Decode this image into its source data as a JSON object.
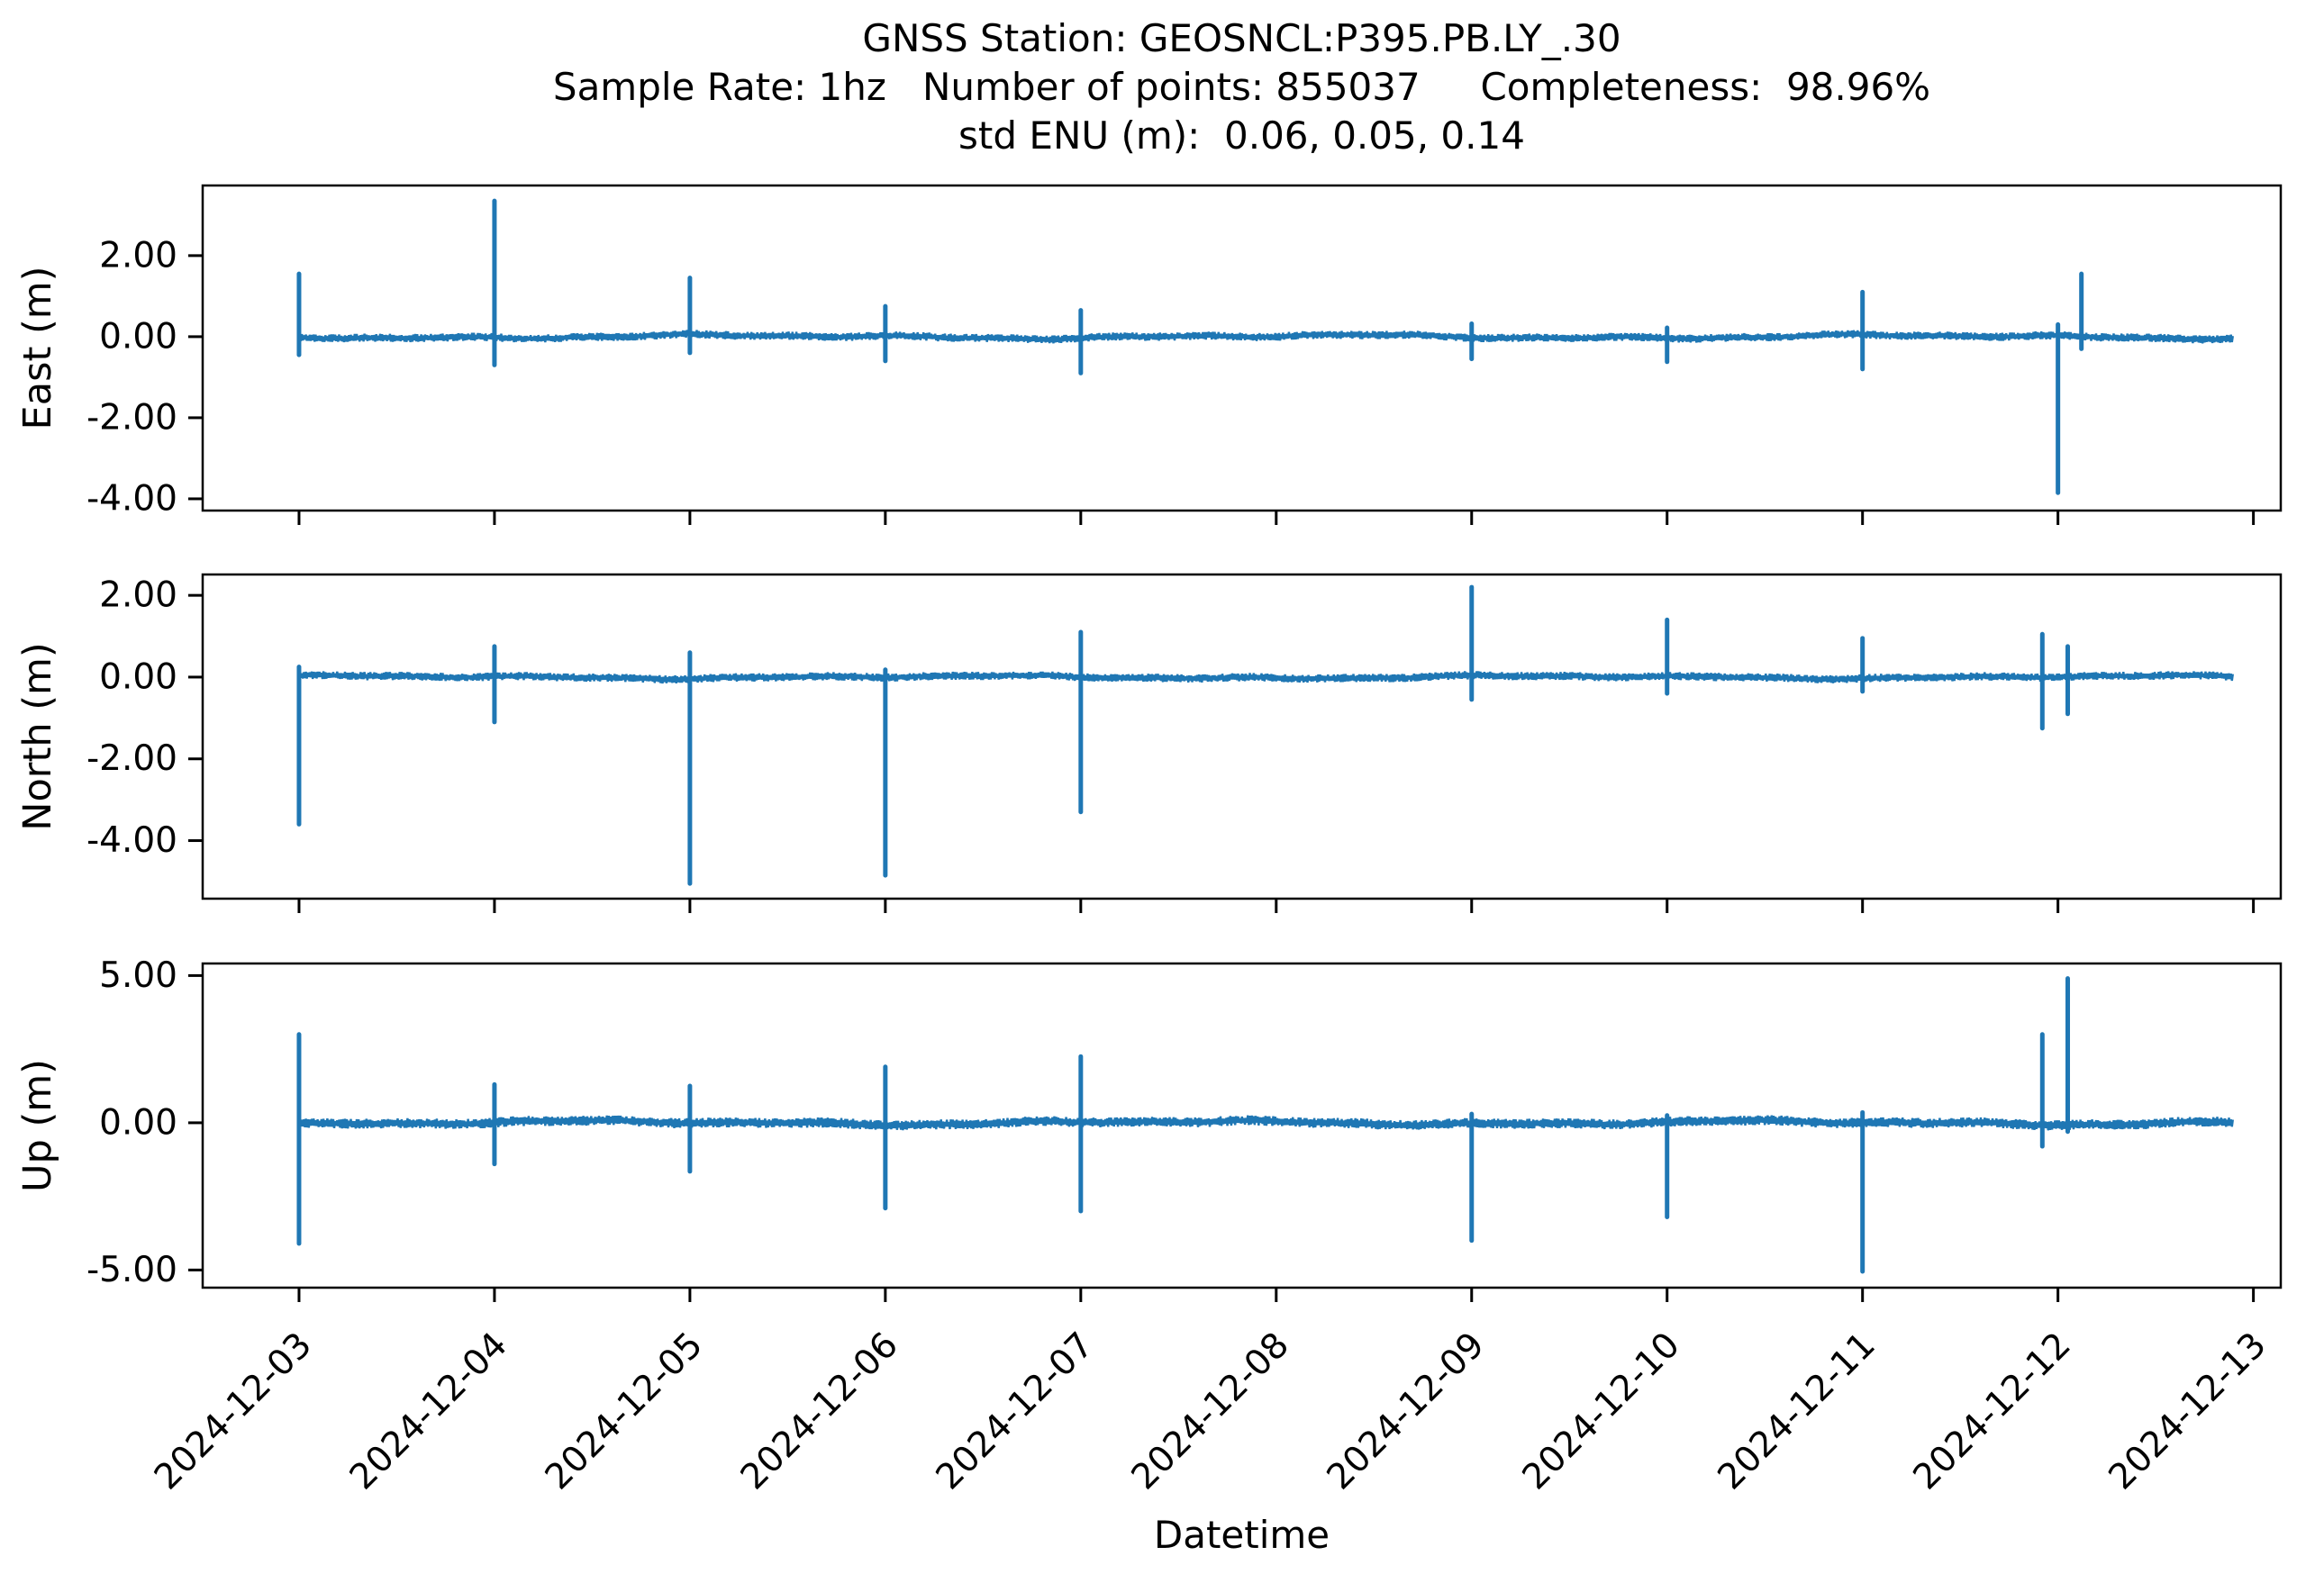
{
  "chart_data": {
    "type": "line",
    "title": "GNSS Station: GEOSNCL:P395.PB.LY_.30",
    "subtitle": "Sample Rate: 1hz   Number of points: 855037     Completeness:  98.96%",
    "subtitle2": "std ENU (m):  0.06, 0.05, 0.14",
    "station": "GEOSNCL:P395.PB.LY_.30",
    "sample_rate": "1hz",
    "number_of_points": 855037,
    "completeness_pct": 98.96,
    "std_enu_m": [
      0.06,
      0.05,
      0.14
    ],
    "xlabel": "Datetime",
    "x_tick_labels": [
      "2024-12-03",
      "2024-12-04",
      "2024-12-05",
      "2024-12-06",
      "2024-12-07",
      "2024-12-08",
      "2024-12-09",
      "2024-12-10",
      "2024-12-11",
      "2024-12-12",
      "2024-12-13"
    ],
    "x_axis_unit": "days since 2024-12-03 00:00",
    "xlim_days": [
      -0.493,
      10.14
    ],
    "data_start_day": 0.0,
    "data_end_day": 9.9,
    "line_color": "#1f77b4",
    "background": "#ffffff",
    "grid": false,
    "legend": null,
    "panels": [
      {
        "ylabel": "East (m)",
        "yticks": [
          2,
          0,
          -2,
          -4
        ],
        "ytick_labels": [
          "2.00",
          "0.00",
          "-2.00",
          "-4.00"
        ],
        "ylim": [
          -4.29,
          3.73
        ],
        "baseline": 0.0,
        "noise_halfwidth": 0.1,
        "wander_amp": 0.05,
        "spikes": [
          {
            "day": 0.0,
            "max": 1.55,
            "min": -0.45
          },
          {
            "day": 1.0,
            "max": 3.35,
            "min": -0.7
          },
          {
            "day": 2.0,
            "max": 1.45,
            "min": -0.4
          },
          {
            "day": 3.0,
            "max": 0.75,
            "min": -0.6
          },
          {
            "day": 4.0,
            "max": 0.65,
            "min": -0.9
          },
          {
            "day": 6.0,
            "max": 0.32,
            "min": -0.55
          },
          {
            "day": 7.0,
            "max": 0.22,
            "min": -0.62
          },
          {
            "day": 8.0,
            "max": 1.1,
            "min": -0.8
          },
          {
            "day": 9.0,
            "max": 0.3,
            "min": -3.85
          },
          {
            "day": 9.12,
            "max": 1.55,
            "min": -0.3
          }
        ]
      },
      {
        "ylabel": "North (m)",
        "yticks": [
          2,
          0,
          -2,
          -4
        ],
        "ytick_labels": [
          "2.00",
          "0.00",
          "-2.00",
          "-4.00"
        ],
        "ylim": [
          -5.42,
          2.51
        ],
        "baseline": 0.0,
        "noise_halfwidth": 0.1,
        "wander_amp": 0.04,
        "spikes": [
          {
            "day": 0.0,
            "max": 0.25,
            "min": -3.6
          },
          {
            "day": 1.0,
            "max": 0.75,
            "min": -1.1
          },
          {
            "day": 2.0,
            "max": 0.6,
            "min": -5.05
          },
          {
            "day": 3.0,
            "max": 0.18,
            "min": -4.85
          },
          {
            "day": 4.0,
            "max": 1.1,
            "min": -3.3
          },
          {
            "day": 6.0,
            "max": 2.2,
            "min": -0.55
          },
          {
            "day": 7.0,
            "max": 1.4,
            "min": -0.4
          },
          {
            "day": 8.0,
            "max": 0.95,
            "min": -0.35
          },
          {
            "day": 8.92,
            "max": 1.05,
            "min": -1.25
          },
          {
            "day": 9.05,
            "max": 0.75,
            "min": -0.9
          }
        ]
      },
      {
        "ylabel": "Up (m)",
        "yticks": [
          5,
          0,
          -5
        ],
        "ytick_labels": [
          "5.00",
          "0.00",
          "-5.00"
        ],
        "ylim": [
          -5.6,
          5.41
        ],
        "baseline": 0.0,
        "noise_halfwidth": 0.17,
        "wander_amp": 0.07,
        "spikes": [
          {
            "day": 0.0,
            "max": 3.0,
            "min": -4.1
          },
          {
            "day": 1.0,
            "max": 1.3,
            "min": -1.4
          },
          {
            "day": 2.0,
            "max": 1.25,
            "min": -1.65
          },
          {
            "day": 3.0,
            "max": 1.9,
            "min": -2.9
          },
          {
            "day": 4.0,
            "max": 2.25,
            "min": -3.0
          },
          {
            "day": 6.0,
            "max": 0.3,
            "min": -4.0
          },
          {
            "day": 7.0,
            "max": 0.25,
            "min": -3.2
          },
          {
            "day": 8.0,
            "max": 0.35,
            "min": -5.05
          },
          {
            "day": 8.92,
            "max": 3.0,
            "min": -0.8
          },
          {
            "day": 9.05,
            "max": 4.9,
            "min": -0.3
          }
        ]
      }
    ]
  }
}
